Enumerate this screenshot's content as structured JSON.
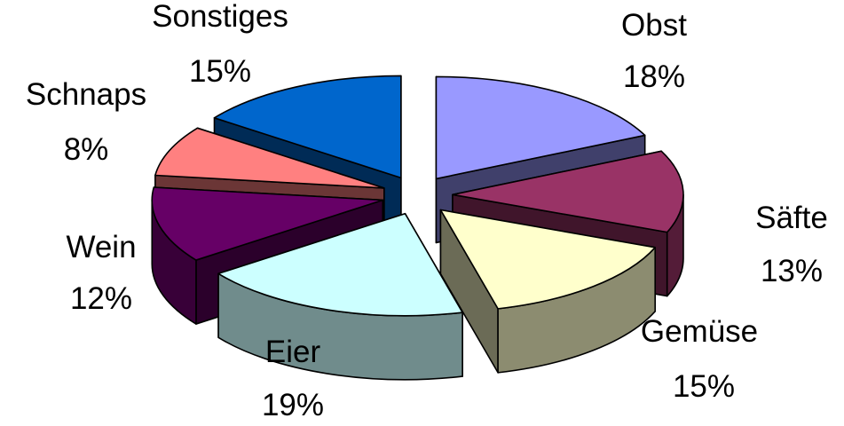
{
  "chart_data": {
    "type": "pie",
    "three_d": true,
    "exploded": true,
    "legend": "none",
    "labels_position": "outside",
    "slices": [
      {
        "name": "Obst",
        "value": 18,
        "label": "18%",
        "color": "#9999FF"
      },
      {
        "name": "Säfte",
        "value": 13,
        "label": "13%",
        "color": "#993366"
      },
      {
        "name": "Gemüse",
        "value": 15,
        "label": "15%",
        "color": "#FFFFCC"
      },
      {
        "name": "Eier",
        "value": 19,
        "label": "19%",
        "color": "#CCFFFF"
      },
      {
        "name": "Wein",
        "value": 12,
        "label": "12%",
        "color": "#660066"
      },
      {
        "name": "Schnaps",
        "value": 8,
        "label": "8%",
        "color": "#FF8080"
      },
      {
        "name": "Sonstiges",
        "value": 15,
        "label": "15%",
        "color": "#0066CC"
      }
    ]
  }
}
